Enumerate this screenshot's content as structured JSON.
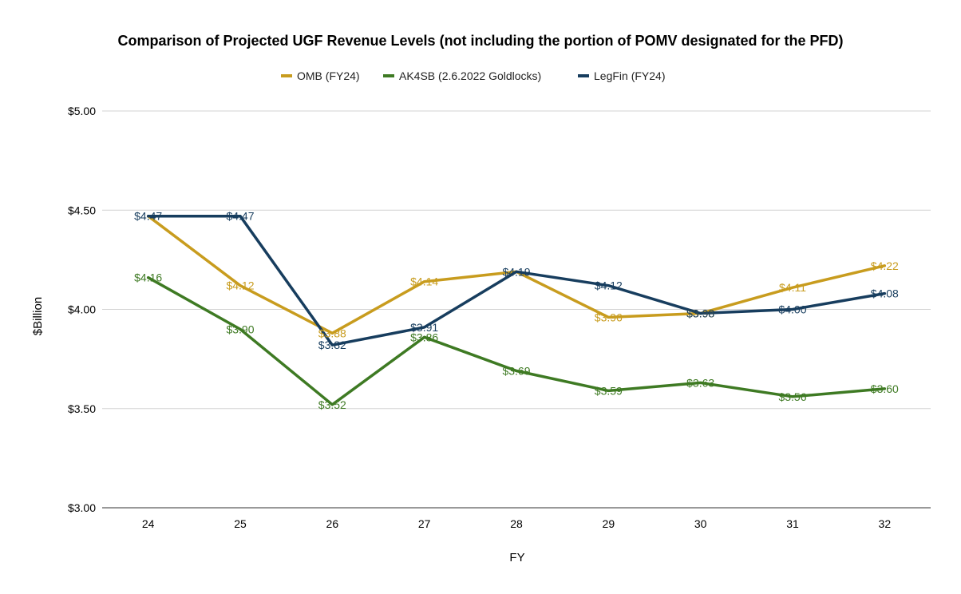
{
  "chart_data": {
    "type": "line",
    "title": "Comparison of Projected UGF Revenue Levels (not including the portion of POMV designated for the PFD)",
    "xlabel": "FY",
    "ylabel": "$Billion",
    "categories": [
      "24",
      "25",
      "26",
      "27",
      "28",
      "29",
      "30",
      "31",
      "32"
    ],
    "ylim": [
      3.0,
      5.0
    ],
    "yticks": [
      {
        "value": 3.0,
        "label": "$3.00"
      },
      {
        "value": 3.5,
        "label": "$3.50"
      },
      {
        "value": 4.0,
        "label": "$4.00"
      },
      {
        "value": 4.5,
        "label": "$4.50"
      },
      {
        "value": 5.0,
        "label": "$5.00"
      }
    ],
    "grid": true,
    "legend_position": "top",
    "series": [
      {
        "name": "OMB (FY24)",
        "color": "#c89c1e",
        "values": [
          4.47,
          4.12,
          3.88,
          4.14,
          4.19,
          3.96,
          3.98,
          4.11,
          4.22
        ],
        "labels": [
          "",
          "$4.12",
          "$3.88",
          "$4.14",
          "",
          "$3.96",
          "$3.98",
          "$4.11",
          "$4.22"
        ]
      },
      {
        "name": "AK4SB (2.6.2022 Goldlocks)",
        "color": "#3e7a23",
        "values": [
          4.16,
          3.9,
          3.52,
          3.86,
          3.69,
          3.59,
          3.63,
          3.56,
          3.6
        ],
        "labels": [
          "$4.16",
          "$3.90",
          "$3.52",
          "$3.86",
          "$3.69",
          "$3.59",
          "$3.63",
          "$3.56",
          "$3.60"
        ]
      },
      {
        "name": "LegFin (FY24)",
        "color": "#173d5e",
        "values": [
          4.47,
          4.47,
          3.82,
          3.91,
          4.19,
          4.12,
          3.98,
          4.0,
          4.08
        ],
        "labels": [
          "$4.47",
          "$4.47",
          "$3.82",
          "$3.91",
          "$4.19",
          "$4.12",
          "$3.98",
          "$4.00",
          "$4.08"
        ]
      }
    ]
  }
}
